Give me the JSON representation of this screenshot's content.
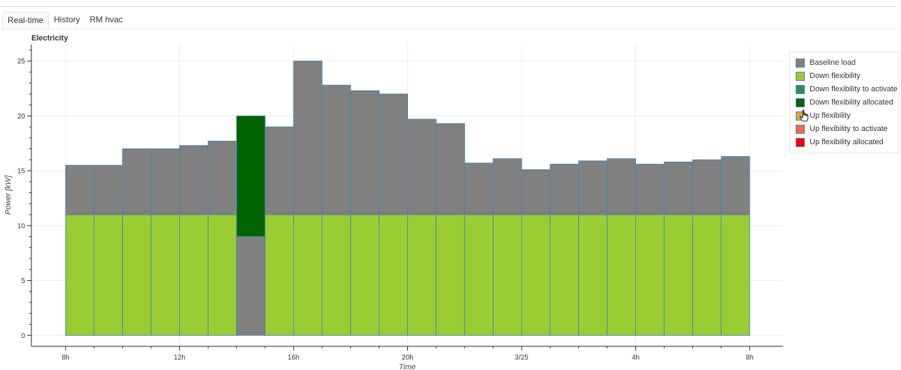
{
  "tabs": [
    {
      "label": "Real-time",
      "active": true
    },
    {
      "label": "History",
      "active": false
    },
    {
      "label": "RM hvac",
      "active": false
    }
  ],
  "chart_data": {
    "type": "bar",
    "stacked": true,
    "title": "Electricity",
    "xlabel": "Time",
    "ylabel": "Power [kW]",
    "ylim": [
      -1.0,
      26.5
    ],
    "y_ticks": [
      0,
      5,
      10,
      15,
      20,
      25
    ],
    "x_ticks": [
      {
        "label": "8h",
        "slot": 0
      },
      {
        "label": "12h",
        "slot": 4
      },
      {
        "label": "16h",
        "slot": 8
      },
      {
        "label": "20h",
        "slot": 12
      },
      {
        "label": "3/25",
        "slot": 16
      },
      {
        "label": "4h",
        "slot": 20
      },
      {
        "label": "8h",
        "slot": 24
      }
    ],
    "slots": 24,
    "grid": true,
    "legend_position": "right",
    "series": [
      {
        "name": "Baseline load",
        "color": "#808080",
        "values": [
          4.5,
          4.5,
          6.0,
          6.0,
          6.3,
          6.7,
          9.0,
          8.0,
          14.0,
          11.8,
          11.3,
          11.0,
          8.7,
          8.3,
          4.7,
          5.1,
          4.1,
          4.6,
          4.9,
          5.1,
          4.6,
          4.8,
          5.0,
          5.3
        ]
      },
      {
        "name": "Down flexibility",
        "color": "#9acd32",
        "values": [
          11,
          11,
          11,
          11,
          11,
          11,
          0,
          11,
          11,
          11,
          11,
          11,
          11,
          11,
          11,
          11,
          11,
          11,
          11,
          11,
          11,
          11,
          11,
          11
        ]
      },
      {
        "name": "Down flexibility to activate",
        "color": "#2e8b57",
        "values": [
          0,
          0,
          0,
          0,
          0,
          0,
          0,
          0,
          0,
          0,
          0,
          0,
          0,
          0,
          0,
          0,
          0,
          0,
          0,
          0,
          0,
          0,
          0,
          0
        ]
      },
      {
        "name": "Down flexibility allocated",
        "color": "#006400",
        "values": [
          0,
          0,
          0,
          0,
          0,
          0,
          11.0,
          0,
          0,
          0,
          0,
          0,
          0,
          0,
          0,
          0,
          0,
          0,
          0,
          0,
          0,
          0,
          0,
          0
        ]
      },
      {
        "name": "Up flexibility",
        "color": "#e8a13a",
        "values": [
          0,
          0,
          0,
          0,
          0,
          0,
          0,
          0,
          0,
          0,
          0,
          0,
          0,
          0,
          0,
          0,
          0,
          0,
          0,
          0,
          0,
          0,
          0,
          0
        ]
      },
      {
        "name": "Up flexibility to activate",
        "color": "#ff6347",
        "values": [
          0,
          0,
          0,
          0,
          0,
          0,
          0,
          0,
          0,
          0,
          0,
          0,
          0,
          0,
          0,
          0,
          0,
          0,
          0,
          0,
          0,
          0,
          0,
          0
        ]
      },
      {
        "name": "Up flexibility allocated",
        "color": "#ff0000",
        "values": [
          0,
          0,
          0,
          0,
          0,
          0,
          0,
          0,
          0,
          0,
          0,
          0,
          0,
          0,
          0,
          0,
          0,
          0,
          0,
          0,
          0,
          0,
          0,
          0
        ]
      }
    ],
    "stack_order": [
      "Down flexibility",
      "Baseline load",
      "Down flexibility allocated"
    ],
    "bar_outline_color": "#4a86b0"
  }
}
